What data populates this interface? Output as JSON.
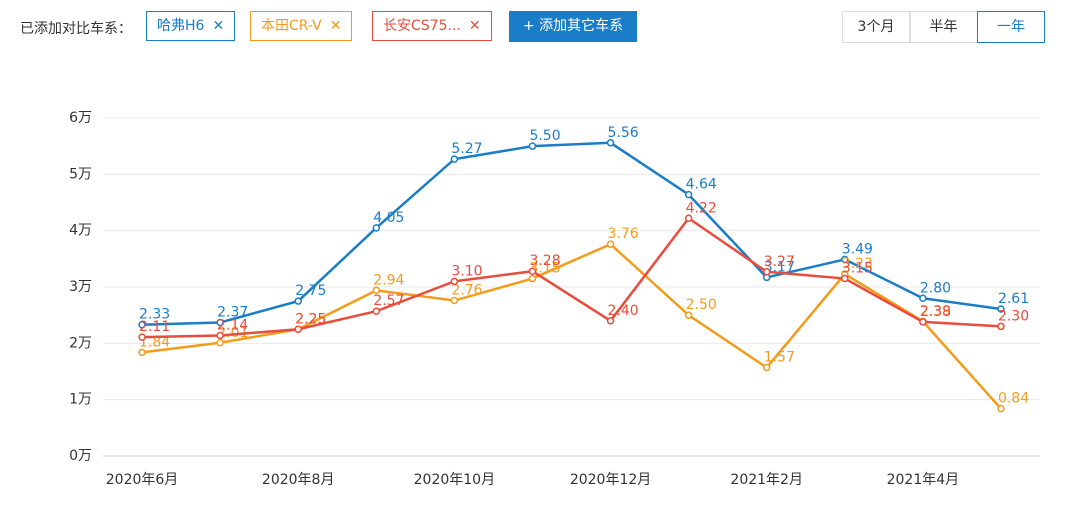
{
  "header": {
    "label": "已添加对比车系：",
    "add_button": "+ 添加其它车系",
    "close_icon": "✕",
    "ranges": [
      "3个月",
      "半年",
      "一年"
    ],
    "selected_range": 2
  },
  "chart_data": {
    "type": "line",
    "categories": [
      "2020年6月",
      null,
      "2020年8月",
      null,
      "2020年10月",
      null,
      "2020年12月",
      null,
      "2021年2月",
      null,
      "2021年4月",
      null
    ],
    "ylim": [
      0,
      6
    ],
    "yticks": [
      {
        "value": 0,
        "label": "0万"
      },
      {
        "value": 1,
        "label": "1万"
      },
      {
        "value": 2,
        "label": "2万"
      },
      {
        "value": 3,
        "label": "3万"
      },
      {
        "value": 4,
        "label": "4万"
      },
      {
        "value": 5,
        "label": "5万"
      },
      {
        "value": 6,
        "label": "6万"
      }
    ],
    "grid": true,
    "series": [
      {
        "name": "哈弗H6",
        "color": "#1a7dc8",
        "values": [
          2.33,
          2.37,
          2.75,
          4.05,
          5.27,
          5.5,
          5.56,
          4.64,
          3.17,
          3.49,
          2.8,
          2.61
        ],
        "value_labels": [
          "2.33",
          "2.37",
          "2.75",
          "4.05",
          "5.27",
          "5.50",
          "5.56",
          "4.64",
          "3.17",
          "3.49",
          "2.80",
          "2.61"
        ]
      },
      {
        "name": "本田CR-V",
        "color": "#f39c1a",
        "values": [
          1.84,
          2.01,
          2.25,
          2.94,
          2.76,
          3.15,
          3.76,
          2.5,
          1.57,
          3.23,
          2.39,
          0.84
        ],
        "value_labels": [
          "1.84",
          "2.01",
          "2.25",
          "2.94",
          "2.76",
          "3.15",
          "3.76",
          "2.50",
          "1.57",
          "3.23",
          "2.39",
          "0.84"
        ]
      },
      {
        "name": "长安CS75...",
        "color": "#e84c3d",
        "values": [
          2.11,
          2.14,
          2.25,
          2.57,
          3.1,
          3.28,
          2.4,
          4.22,
          3.27,
          3.15,
          2.38,
          2.3
        ],
        "value_labels": [
          "2.11",
          "2.14",
          "2.25",
          "2.57",
          "3.10",
          "3.28",
          "2.40",
          "4.22",
          "3.27",
          "3.15",
          "2.38",
          "2.30"
        ]
      }
    ]
  }
}
